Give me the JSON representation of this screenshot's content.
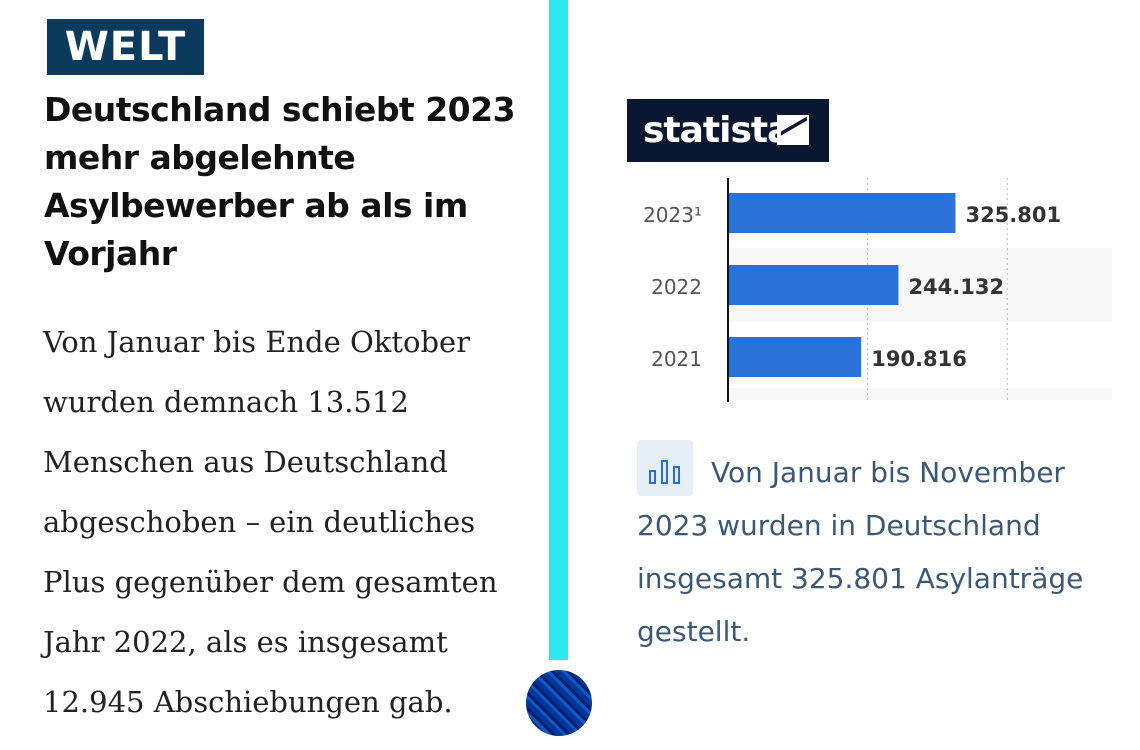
{
  "left": {
    "logo": "WELT",
    "headline": "Deutschland schiebt 2023 mehr abgelehnte Asylbewerber ab als im Vorjahr",
    "body": "Von Januar bis Ende Oktober wurden demnach 13.512 Menschen aus Deutschland abgeschoben – ein deutliches Plus gegenüber dem gesamten Jahr 2022, als es insgesamt 12.945 Abschiebungen gab."
  },
  "right": {
    "logo": "statista",
    "caption": "Von Januar bis November 2023 wurden in Deutschland insgesamt 325.801 Asylanträge gestellt.",
    "caption_icon": "bar-chart-icon"
  },
  "colors": {
    "divider": "#2ee8f0",
    "bar": "#2a72d8",
    "welt": "#0b3a5c",
    "statista": "#0b1730"
  },
  "chart_data": {
    "type": "bar",
    "orientation": "horizontal",
    "categories": [
      "2023¹",
      "2022",
      "2021"
    ],
    "values": [
      325801,
      244132,
      190816
    ],
    "labels": [
      "325.801",
      "244.132",
      "190.816"
    ],
    "xlim": [
      0,
      550000
    ],
    "grid": true,
    "gridlines": [
      200000,
      400000
    ]
  }
}
